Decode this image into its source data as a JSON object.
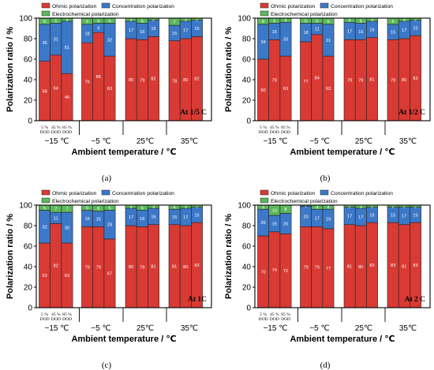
{
  "colors": {
    "ohmic": "#d93a34",
    "concentration": "#3c78c8",
    "electrochemical": "#5cb85c",
    "axis": "#000000",
    "bar_edge": "#222222"
  },
  "chart_data": [
    {
      "type": "bar",
      "stacked": true,
      "caption": "(a)",
      "annotation": "At 1/5 C",
      "ylabel": "Polarization ratio / %",
      "xlabel": "Ambient temperature / ℃",
      "ylim": [
        0,
        100
      ],
      "yticks": [
        0,
        20,
        40,
        60,
        80,
        100
      ],
      "grid": false,
      "legend": [
        "Ohmic polarization",
        "Concentration polarization",
        "Electrochemical polarization"
      ],
      "group_labels": [
        "−15 ℃",
        "−5 ℃",
        "25℃",
        "35℃"
      ],
      "dod_labels": [
        "5 %\nDOD",
        "45 %\nDOD",
        "85 %\nDOD"
      ],
      "series": [
        {
          "name": "Ohmic polarization",
          "values": [
            [
              58,
              64,
              46
            ],
            [
              76,
              86,
              63
            ],
            [
              80,
              79,
              82
            ],
            [
              78,
              80,
              82
            ]
          ]
        },
        {
          "name": "Concentration polarization",
          "values": [
            [
              36,
              31,
              51
            ],
            [
              18,
              9,
              32
            ],
            [
              17,
              16,
              16
            ],
            [
              15,
              17,
              16
            ]
          ]
        },
        {
          "name": "Electrochemical polarization",
          "values": [
            [
              6,
              5,
              3
            ],
            [
              6,
              5,
              5
            ],
            [
              3,
              5,
              2
            ],
            [
              7,
              3,
              2
            ]
          ]
        }
      ]
    },
    {
      "type": "bar",
      "stacked": true,
      "caption": "(b)",
      "annotation": "At 1/2 C",
      "ylabel": "Polarization ratio / %",
      "xlabel": "Ambient temperature / ℃",
      "ylim": [
        0,
        100
      ],
      "yticks": [
        0,
        20,
        40,
        60,
        80,
        100
      ],
      "grid": false,
      "legend": [
        "Ohmic polarization",
        "Concentration polarization",
        "Electrochemical polarization"
      ],
      "group_labels": [
        "−15 ℃",
        "−5 ℃",
        "25℃",
        "35℃"
      ],
      "dod_labels": [
        "5 %\nDOD",
        "45 %\nDOD",
        "85 %\nDOD"
      ],
      "series": [
        {
          "name": "Ohmic polarization",
          "values": [
            [
              60,
              79,
              63
            ],
            [
              77,
              84,
              63
            ],
            [
              79,
              79,
              81
            ],
            [
              79,
              80,
              83
            ]
          ]
        },
        {
          "name": "Concentration polarization",
          "values": [
            [
              34,
              16,
              33
            ],
            [
              18,
              11,
              31
            ],
            [
              17,
              16,
              16
            ],
            [
              15,
              17,
              15
            ]
          ]
        },
        {
          "name": "Electrochemical polarization",
          "values": [
            [
              6,
              5,
              4
            ],
            [
              5,
              5,
              6
            ],
            [
              4,
              5,
              3
            ],
            [
              6,
              3,
              2
            ]
          ]
        }
      ]
    },
    {
      "type": "bar",
      "stacked": true,
      "caption": "(c)",
      "annotation": "At 1C",
      "ylabel": "Polarization ratio / %",
      "xlabel": "Ambient temperature / ℃",
      "ylim": [
        0,
        100
      ],
      "yticks": [
        0,
        20,
        40,
        60,
        80,
        100
      ],
      "grid": false,
      "legend": [
        "Ohmic polarization",
        "Concentration polarization",
        "Electrochemical polarization"
      ],
      "group_labels": [
        "−15 ℃",
        "−5 ℃",
        "25℃",
        "35℃"
      ],
      "dod_labels": [
        "5 %\nDOD",
        "45 %\nDOD",
        "85 %\nDOD"
      ],
      "series": [
        {
          "name": "Ohmic polarization",
          "values": [
            [
              63,
              82,
              63
            ],
            [
              79,
              79,
              67
            ],
            [
              80,
              79,
              81
            ],
            [
              81,
              80,
              83
            ]
          ]
        },
        {
          "name": "Concentration polarization",
          "values": [
            [
              32,
              11,
              30
            ],
            [
              16,
              15,
              28
            ],
            [
              17,
              16,
              16
            ],
            [
              15,
              17,
              15
            ]
          ]
        },
        {
          "name": "Electrochemical polarization",
          "values": [
            [
              5,
              7,
              7
            ],
            [
              5,
              6,
              5
            ],
            [
              3,
              5,
              3
            ],
            [
              4,
              3,
              2
            ]
          ]
        }
      ]
    },
    {
      "type": "bar",
      "stacked": true,
      "caption": "(d)",
      "annotation": "At 2 C",
      "ylabel": "Polarization ratio / %",
      "xlabel": "Ambient temperature / ℃",
      "ylim": [
        0,
        100
      ],
      "yticks": [
        0,
        20,
        40,
        60,
        80,
        100
      ],
      "grid": false,
      "legend": [
        "Ohmic polarization",
        "Concentration polarization",
        "Electrochemical polarization"
      ],
      "group_labels": [
        "−15 ℃",
        "−5 ℃",
        "25℃",
        "35℃"
      ],
      "dod_labels": [
        "5 %\nDOD",
        "45 %\nDOD",
        "85 %\nDOD"
      ],
      "series": [
        {
          "name": "Ohmic polarization",
          "values": [
            [
              70,
              74,
              72
            ],
            [
              79,
              79,
              77
            ],
            [
              81,
              80,
              83
            ],
            [
              83,
              81,
              83
            ]
          ]
        },
        {
          "name": "Concentration polarization",
          "values": [
            [
              26,
              16,
              20
            ],
            [
              20,
              17,
              19
            ],
            [
              17,
              17,
              15
            ],
            [
              15,
              17,
              15
            ]
          ]
        },
        {
          "name": "Electrochemical polarization",
          "values": [
            [
              4,
              10,
              8
            ],
            [
              1,
              4,
              4
            ],
            [
              2,
              3,
              2
            ],
            [
              2,
              2,
              2
            ]
          ]
        }
      ]
    }
  ]
}
